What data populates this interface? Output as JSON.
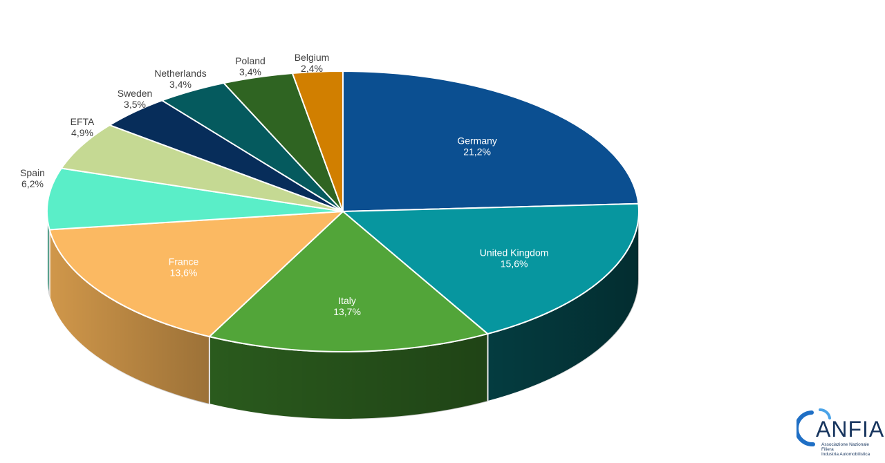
{
  "chart_data": {
    "type": "pie",
    "style": "3d",
    "series": [
      {
        "label": "Germany",
        "value": 21.2,
        "display": "21,2%",
        "color": "#0b4f91",
        "side": "#06305a",
        "label_pos": "inside",
        "label_color": "#ffffff"
      },
      {
        "label": "United Kingdom",
        "value": 15.6,
        "display": "15,6%",
        "color": "#07969f",
        "side": "#043c40",
        "label_pos": "inside",
        "label_color": "#ffffff"
      },
      {
        "label": "Italy",
        "value": 13.7,
        "display": "13,7%",
        "color": "#52a539",
        "side": "#2a5a1d",
        "label_pos": "inside",
        "label_color": "#ffffff"
      },
      {
        "label": "France",
        "value": 13.6,
        "display": "13,6%",
        "color": "#fbb962",
        "side": "#d0974a",
        "label_pos": "inside",
        "label_color": "#ffffff"
      },
      {
        "label": "Spain",
        "value": 6.2,
        "display": "6,2%",
        "color": "#5aeec8",
        "side": "#3aa88c",
        "label_pos": "outside",
        "label_color": "#404040"
      },
      {
        "label": "EFTA",
        "value": 4.9,
        "display": "4,9%",
        "color": "#c5d993",
        "side": "#8ea060",
        "label_pos": "outside",
        "label_color": "#404040"
      },
      {
        "label": "Sweden",
        "value": 3.5,
        "display": "3,5%",
        "color": "#072d5a",
        "side": "#041a35",
        "label_pos": "outside",
        "label_color": "#404040"
      },
      {
        "label": "Netherlands",
        "value": 3.4,
        "display": "3,4%",
        "color": "#055a5e",
        "side": "#033436",
        "label_pos": "outside",
        "label_color": "#404040"
      },
      {
        "label": "Poland",
        "value": 3.4,
        "display": "3,4%",
        "color": "#2f6422",
        "side": "#1b3b14",
        "label_pos": "outside",
        "label_color": "#404040"
      },
      {
        "label": "Belgium",
        "value": 2.4,
        "display": "2,4%",
        "color": "#d17f00",
        "side": "#8a5400",
        "label_pos": "outside",
        "label_color": "#404040"
      }
    ]
  },
  "logo": {
    "word": "ANFIA",
    "line1": "Associazione Nazionale",
    "line2": "Filiera",
    "line3": "Industria Automobilistica"
  }
}
